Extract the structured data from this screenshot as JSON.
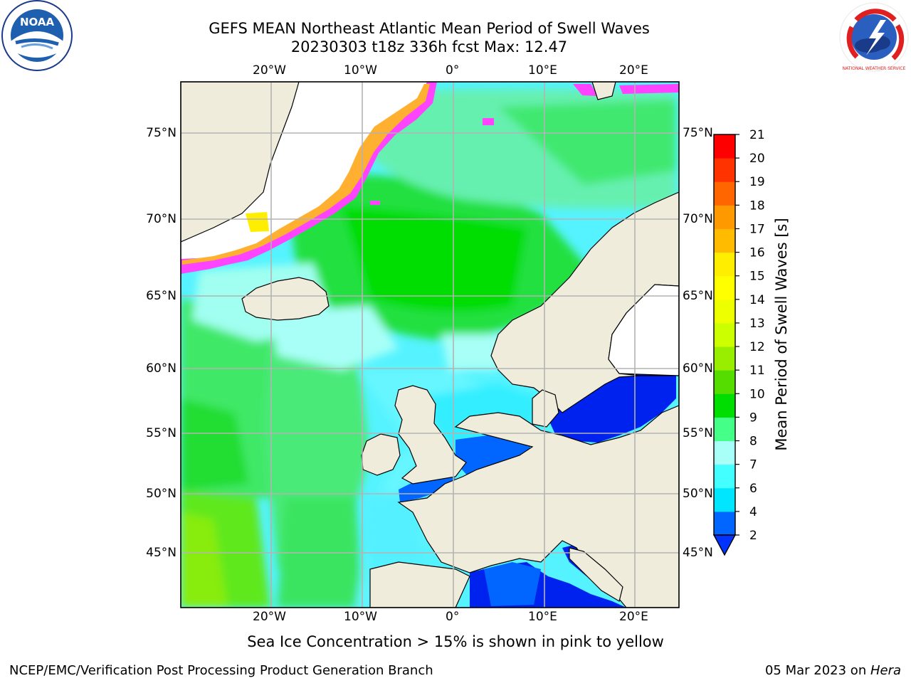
{
  "header": {
    "title_line1": "GEFS MEAN Northeast Atlantic Mean Period of Swell Waves",
    "title_line2": "20230303 t18z 336h fcst   Max: 12.47"
  },
  "map": {
    "top_lon_labels": [
      "20°W",
      "10°W",
      "0°",
      "10°E",
      "20°E"
    ],
    "bottom_lon_labels": [
      "20°W",
      "10°W",
      "0°",
      "10°E",
      "20°E"
    ],
    "left_lat_labels": [
      "75°N",
      "70°N",
      "65°N",
      "60°N",
      "55°N",
      "50°N",
      "45°N"
    ],
    "right_lat_labels": [
      "75°N",
      "70°N",
      "65°N",
      "60°N",
      "55°N",
      "50°N",
      "45°N"
    ],
    "colors": {
      "land": "#efecdc",
      "ice_edge": "#ff44ff",
      "ice_inner": "#ffaa33"
    }
  },
  "colorbar": {
    "label": "Mean Period of Swell Waves [s]",
    "ticks": [
      "2",
      "4",
      "6",
      "7",
      "8",
      "9",
      "10",
      "11",
      "12",
      "13",
      "14",
      "15",
      "16",
      "17",
      "18",
      "19",
      "20",
      "21"
    ],
    "colors": [
      "#0066ff",
      "#00e6ff",
      "#44ffff",
      "#a8fff7",
      "#44ff88",
      "#00dd00",
      "#55dd00",
      "#99ee00",
      "#ccff00",
      "#eeff00",
      "#ffff00",
      "#ffee00",
      "#ffbb00",
      "#ff9900",
      "#ff6600",
      "#ff3300",
      "#ff0000"
    ],
    "extend_min_color": "#0033ff"
  },
  "notes": {
    "sea_ice": "Sea Ice Concentration > 15% is shown in pink to yellow"
  },
  "footer": {
    "left": "NCEP/EMC/Verification Post Processing Product Generation Branch",
    "right_date": "05 Mar 2023 on ",
    "right_host": "Hera"
  },
  "logos": {
    "noaa": "NOAA",
    "nws": "NATIONAL WEATHER SERVICE"
  }
}
